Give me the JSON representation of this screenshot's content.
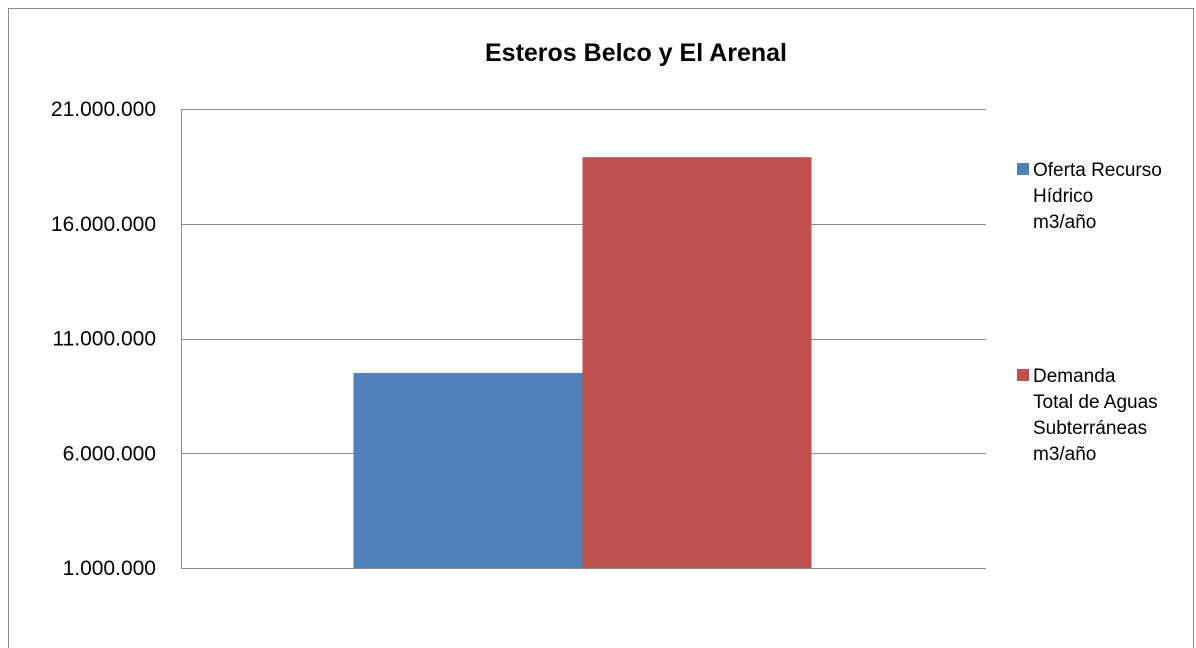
{
  "chart_data": {
    "type": "bar",
    "title": "Esteros Belco y El Arenal",
    "categories": [
      ""
    ],
    "series": [
      {
        "name": "Oferta Recurso Hídrico m3/año",
        "values": [
          9500000
        ],
        "color": "#4f81bd"
      },
      {
        "name": "Demanda Total de Aguas Subterráneas m3/año",
        "values": [
          18900000
        ],
        "color": "#c0504d"
      }
    ],
    "ylim": [
      1000000,
      21000000
    ],
    "yticks": [
      1000000,
      6000000,
      11000000,
      16000000,
      21000000
    ],
    "ytick_labels": [
      "1.000.000",
      "6.000.000",
      "11.000.000",
      "16.000.000",
      "21.000.000"
    ],
    "xlabel": "",
    "ylabel": "",
    "grid": true,
    "legend_position": "right",
    "legend_lines": [
      [
        "Oferta Recurso",
        "Hídrico",
        "m3/año"
      ],
      [
        "Demanda",
        "Total de Aguas",
        "Subterráneas",
        "m3/año"
      ]
    ]
  }
}
